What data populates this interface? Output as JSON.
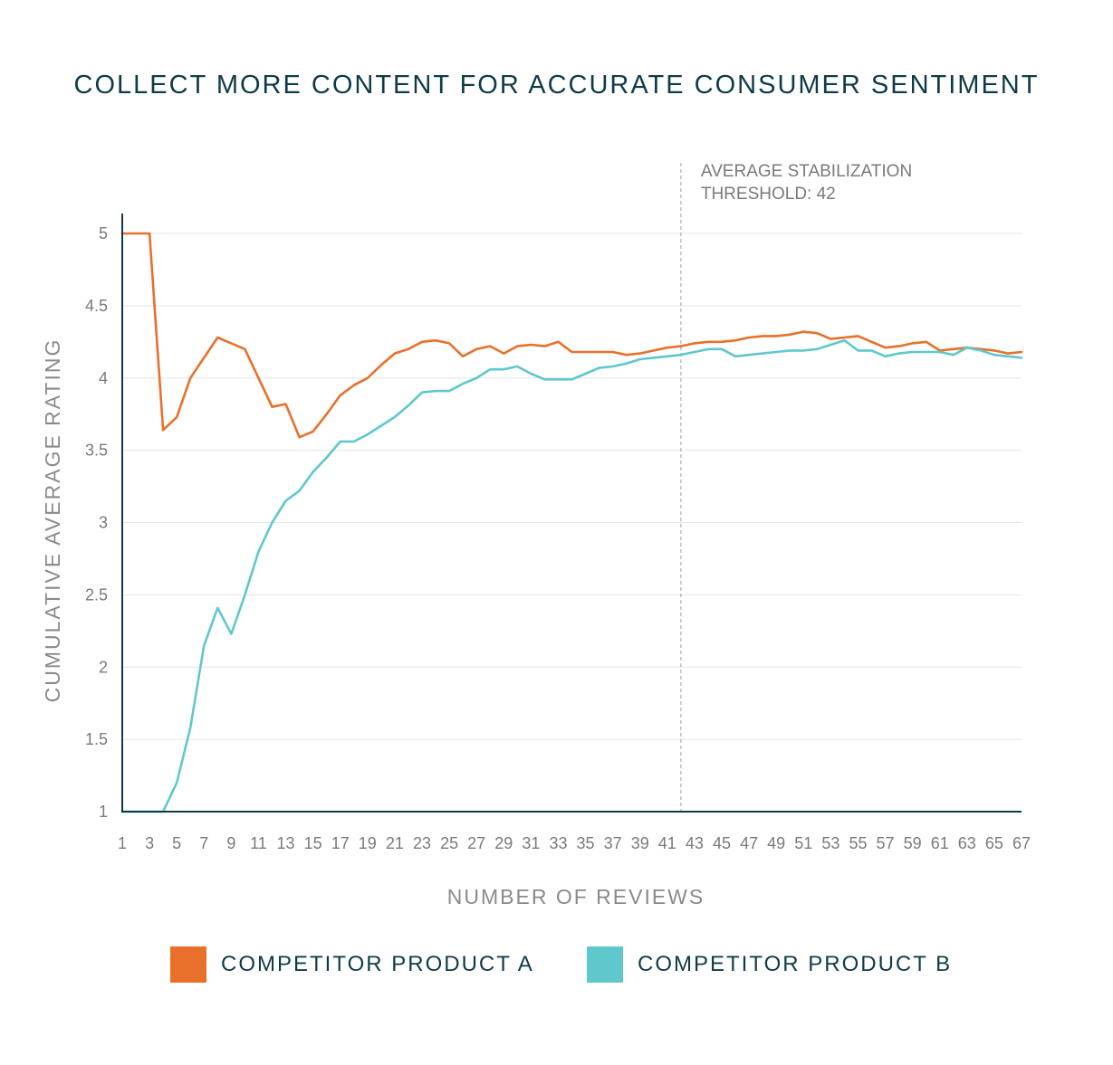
{
  "chart_data": {
    "type": "line",
    "title": "COLLECT MORE CONTENT FOR ACCURATE CONSUMER SENTIMENT",
    "xlabel": "NUMBER OF REVIEWS",
    "ylabel": "CUMULATIVE AVERAGE RATING",
    "xlim": [
      1,
      67
    ],
    "ylim": [
      1,
      5
    ],
    "x_ticks": [
      "1",
      "3",
      "5",
      "7",
      "9",
      "11",
      "13",
      "15",
      "17",
      "19",
      "21",
      "23",
      "25",
      "27",
      "29",
      "31",
      "33",
      "35",
      "37",
      "39",
      "41",
      "43",
      "45",
      "47",
      "49",
      "51",
      "53",
      "55",
      "57",
      "59",
      "61",
      "63",
      "65",
      "67"
    ],
    "y_ticks": [
      {
        "value": 5,
        "label": "5"
      },
      {
        "value": 4.5,
        "label": "4.5"
      },
      {
        "value": 4,
        "label": "4"
      },
      {
        "value": 3.5,
        "label": "3.5"
      },
      {
        "value": 3,
        "label": "3"
      },
      {
        "value": 2.5,
        "label": "2.5"
      },
      {
        "value": 2,
        "label": "2"
      },
      {
        "value": 1.5,
        "label": "1.5"
      },
      {
        "value": 1,
        "label": "1"
      }
    ],
    "grid": true,
    "legend_position": "bottom",
    "annotation": {
      "x": 42,
      "line1": "AVERAGE STABILIZATION",
      "line2": "THRESHOLD: 42"
    },
    "series": [
      {
        "name": "COMPETITOR PRODUCT A",
        "color": "#e8702a",
        "x": [
          1,
          2,
          3,
          4,
          5,
          6,
          8,
          9,
          10,
          11,
          12,
          13,
          14,
          15,
          16,
          17,
          18,
          19,
          20,
          21,
          22,
          23,
          24,
          25,
          26,
          27,
          28,
          29,
          30,
          31,
          32,
          33,
          34,
          35,
          36,
          37,
          38,
          39,
          40,
          41,
          42,
          43,
          44,
          45,
          46,
          47,
          48,
          49,
          50,
          51,
          52,
          53,
          54,
          55,
          56,
          57,
          58,
          59,
          60,
          61,
          62,
          63,
          64,
          65,
          66,
          67
        ],
        "y": [
          5,
          5,
          5,
          3.64,
          3.73,
          4,
          4.28,
          4.24,
          4.2,
          4,
          3.8,
          3.82,
          3.59,
          3.63,
          3.75,
          3.88,
          3.95,
          4,
          4.09,
          4.17,
          4.2,
          4.25,
          4.26,
          4.24,
          4.15,
          4.2,
          4.22,
          4.17,
          4.22,
          4.23,
          4.22,
          4.25,
          4.18,
          4.18,
          4.18,
          4.18,
          4.16,
          4.17,
          4.19,
          4.21,
          4.22,
          4.24,
          4.25,
          4.25,
          4.26,
          4.28,
          4.29,
          4.29,
          4.3,
          4.32,
          4.31,
          4.27,
          4.28,
          4.29,
          4.25,
          4.21,
          4.22,
          4.24,
          4.25,
          4.19,
          4.2,
          4.21,
          4.2,
          4.19,
          4.17,
          4.18
        ]
      },
      {
        "name": "COMPETITOR PRODUCT B",
        "color": "#5ec8cc",
        "x": [
          1,
          2,
          3,
          4,
          5,
          6,
          7,
          8,
          9,
          10,
          11,
          12,
          13,
          14,
          15,
          16,
          17,
          18,
          19,
          20,
          21,
          22,
          23,
          24,
          25,
          26,
          27,
          28,
          29,
          30,
          31,
          32,
          33,
          34,
          35,
          36,
          37,
          38,
          39,
          40,
          41,
          42,
          43,
          44,
          45,
          46,
          47,
          48,
          49,
          50,
          51,
          52,
          53,
          54,
          55,
          56,
          57,
          58,
          59,
          60,
          61,
          62,
          63,
          64,
          65,
          66,
          67
        ],
        "y": [
          1,
          1,
          1,
          1,
          1.2,
          1.58,
          2.15,
          2.41,
          2.23,
          2.5,
          2.8,
          3,
          3.15,
          3.22,
          3.35,
          3.45,
          3.56,
          3.56,
          3.61,
          3.67,
          3.73,
          3.81,
          3.9,
          3.91,
          3.91,
          3.96,
          4,
          4.06,
          4.06,
          4.08,
          4.03,
          3.99,
          3.99,
          3.99,
          4.03,
          4.07,
          4.08,
          4.1,
          4.13,
          4.14,
          4.15,
          4.16,
          4.18,
          4.2,
          4.2,
          4.15,
          4.16,
          4.17,
          4.18,
          4.19,
          4.19,
          4.2,
          4.23,
          4.26,
          4.19,
          4.19,
          4.15,
          4.17,
          4.18,
          4.18,
          4.18,
          4.16,
          4.21,
          4.19,
          4.16,
          4.15,
          4.14
        ]
      }
    ]
  }
}
